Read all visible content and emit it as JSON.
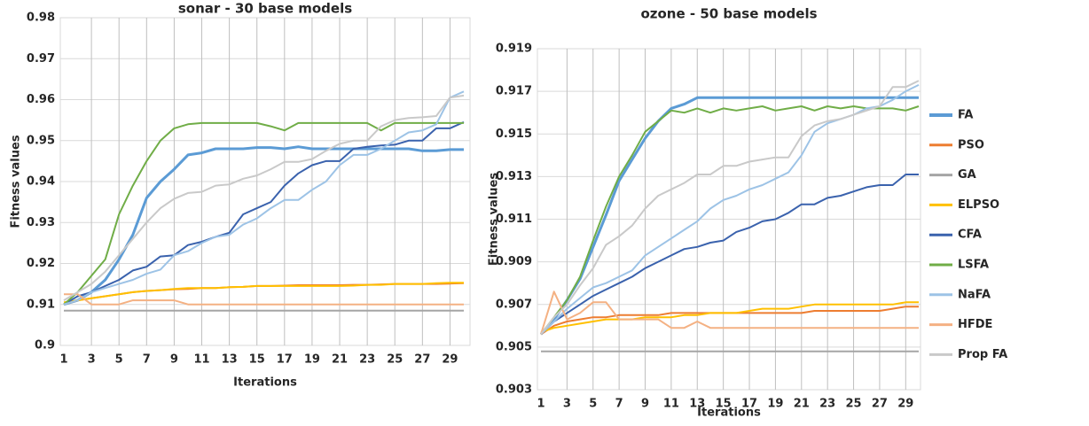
{
  "chart_data": [
    {
      "type": "line",
      "title": "sonar - 30 base models",
      "x_label": "Iterations",
      "y_label": "Fitness values",
      "categories": [
        1,
        null,
        3,
        null,
        5,
        null,
        7,
        null,
        9,
        null,
        11,
        null,
        13,
        null,
        15,
        null,
        17,
        null,
        19,
        null,
        21,
        null,
        23,
        null,
        25,
        null,
        27,
        null,
        29,
        null
      ],
      "ylim": [
        0.9,
        0.98
      ],
      "yticks": [
        0.9,
        0.91,
        0.92,
        0.93,
        0.94,
        0.95,
        0.96,
        0.97,
        0.98
      ],
      "grid": true,
      "series": [
        {
          "name": "FA",
          "color": "#5b9bd5",
          "width": 3,
          "values": [
            0.91,
            0.911,
            0.913,
            0.916,
            0.921,
            0.927,
            0.936,
            0.94,
            0.943,
            0.9465,
            0.947,
            0.948,
            0.948,
            0.948,
            0.9483,
            0.9483,
            0.948,
            0.9485,
            0.948,
            0.948,
            0.948,
            0.948,
            0.948,
            0.948,
            0.948,
            0.948,
            0.9475,
            0.9475,
            0.9478,
            0.9478
          ]
        },
        {
          "name": "PSO",
          "color": "#ed7d31",
          "width": 2,
          "values": [
            0.91,
            0.911,
            0.9115,
            0.912,
            0.9125,
            0.913,
            0.9133,
            0.9135,
            0.9137,
            0.9138,
            0.914,
            0.914,
            0.9142,
            0.9143,
            0.9145,
            0.9145,
            0.9146,
            0.9147,
            0.9147,
            0.9147,
            0.9147,
            0.9148,
            0.9148,
            0.9149,
            0.915,
            0.915,
            0.915,
            0.915,
            0.9151,
            0.9152
          ]
        },
        {
          "name": "GA",
          "color": "#a5a5a5",
          "width": 2,
          "values": [
            0.9085,
            0.9085,
            0.9085,
            0.9085,
            0.9085,
            0.9085,
            0.9085,
            0.9085,
            0.9085,
            0.9085,
            0.9085,
            0.9085,
            0.9085,
            0.9085,
            0.9085,
            0.9085,
            0.9085,
            0.9085,
            0.9085,
            0.9085,
            0.9085,
            0.9085,
            0.9085,
            0.9085,
            0.9085,
            0.9085,
            0.9085,
            0.9085,
            0.9085,
            0.9085
          ]
        },
        {
          "name": "ELPSO",
          "color": "#ffc000",
          "width": 2,
          "values": [
            0.9105,
            0.911,
            0.9115,
            0.912,
            0.9125,
            0.913,
            0.9133,
            0.9135,
            0.9138,
            0.914,
            0.914,
            0.914,
            0.9142,
            0.9143,
            0.9145,
            0.9145,
            0.9145,
            0.9145,
            0.9145,
            0.9145,
            0.9145,
            0.9146,
            0.9148,
            0.9148,
            0.915,
            0.915,
            0.915,
            0.9152,
            0.9153,
            0.9153
          ]
        },
        {
          "name": "CFA",
          "color": "#3a62ad",
          "width": 2,
          "values": [
            0.91,
            0.912,
            0.913,
            0.9145,
            0.916,
            0.9183,
            0.9192,
            0.9217,
            0.922,
            0.9245,
            0.9253,
            0.9265,
            0.9275,
            0.932,
            0.9335,
            0.935,
            0.939,
            0.942,
            0.944,
            0.945,
            0.945,
            0.948,
            0.9485,
            0.9488,
            0.949,
            0.95,
            0.95,
            0.953,
            0.953,
            0.9545
          ]
        },
        {
          "name": "LSFA",
          "color": "#70ad47",
          "width": 2,
          "values": [
            0.91,
            0.913,
            0.917,
            0.921,
            0.932,
            0.939,
            0.945,
            0.95,
            0.953,
            0.954,
            0.9543,
            0.9543,
            0.9543,
            0.9543,
            0.9543,
            0.9535,
            0.9525,
            0.9543,
            0.9543,
            0.9543,
            0.9543,
            0.9543,
            0.9543,
            0.9525,
            0.9543,
            0.9543,
            0.9543,
            0.9543,
            0.9543,
            0.9543
          ]
        },
        {
          "name": "NaFA",
          "color": "#9dc3e6",
          "width": 2,
          "values": [
            0.91,
            0.911,
            0.913,
            0.914,
            0.915,
            0.916,
            0.9175,
            0.9185,
            0.922,
            0.923,
            0.925,
            0.9265,
            0.927,
            0.9295,
            0.931,
            0.9335,
            0.9355,
            0.9355,
            0.938,
            0.94,
            0.944,
            0.9465,
            0.9465,
            0.948,
            0.95,
            0.952,
            0.9525,
            0.954,
            0.9605,
            0.962
          ]
        },
        {
          "name": "HFDE",
          "color": "#f4b183",
          "width": 2,
          "values": [
            0.9125,
            0.9125,
            0.91,
            0.91,
            0.91,
            0.911,
            0.911,
            0.911,
            0.911,
            0.91,
            0.91,
            0.91,
            0.91,
            0.91,
            0.91,
            0.91,
            0.91,
            0.91,
            0.91,
            0.91,
            0.91,
            0.91,
            0.91,
            0.91,
            0.91,
            0.91,
            0.91,
            0.91,
            0.91,
            0.91
          ]
        },
        {
          "name": "Prop FA",
          "color": "#c9c9c9",
          "width": 2,
          "values": [
            0.911,
            0.913,
            0.915,
            0.918,
            0.922,
            0.926,
            0.93,
            0.9335,
            0.9358,
            0.9372,
            0.9375,
            0.939,
            0.9393,
            0.9407,
            0.9415,
            0.943,
            0.9448,
            0.9448,
            0.9455,
            0.9475,
            0.9492,
            0.95,
            0.95,
            0.9535,
            0.955,
            0.9555,
            0.9557,
            0.956,
            0.9605,
            0.961
          ]
        }
      ]
    },
    {
      "type": "line",
      "title": "ozone - 50 base models",
      "x_label": "Iterations",
      "y_label": "Fitness values",
      "categories": [
        1,
        null,
        3,
        null,
        5,
        null,
        7,
        null,
        9,
        null,
        11,
        null,
        13,
        null,
        15,
        null,
        17,
        null,
        19,
        null,
        21,
        null,
        23,
        null,
        25,
        null,
        27,
        null,
        29,
        null
      ],
      "ylim": [
        0.903,
        0.919
      ],
      "yticks": [
        0.903,
        0.905,
        0.907,
        0.909,
        0.911,
        0.913,
        0.915,
        0.917,
        0.919
      ],
      "grid": true,
      "series": [
        {
          "color": "#5b9bd5",
          "width": 3,
          "values": [
            0.9056,
            0.9063,
            0.9072,
            0.9082,
            0.9097,
            0.9112,
            0.9128,
            0.9138,
            0.9148,
            0.9156,
            0.9162,
            0.9164,
            0.9167,
            0.9167,
            0.9167,
            0.9167,
            0.9167,
            0.9167,
            0.9167,
            0.9167,
            0.9167,
            0.9167,
            0.9167,
            0.9167,
            0.9167,
            0.9167,
            0.9167,
            0.9167,
            0.9167,
            0.9167
          ]
        },
        {
          "color": "#ed7d31",
          "width": 2,
          "values": [
            0.9056,
            0.906,
            0.9062,
            0.9063,
            0.9064,
            0.9064,
            0.9065,
            0.9065,
            0.9065,
            0.9065,
            0.9066,
            0.9066,
            0.9066,
            0.9066,
            0.9066,
            0.9066,
            0.9066,
            0.9066,
            0.9066,
            0.9066,
            0.9066,
            0.9067,
            0.9067,
            0.9067,
            0.9067,
            0.9067,
            0.9067,
            0.9068,
            0.9069,
            0.9069
          ]
        },
        {
          "color": "#a5a5a5",
          "width": 2,
          "values": [
            0.9048,
            0.9048,
            0.9048,
            0.9048,
            0.9048,
            0.9048,
            0.9048,
            0.9048,
            0.9048,
            0.9048,
            0.9048,
            0.9048,
            0.9048,
            0.9048,
            0.9048,
            0.9048,
            0.9048,
            0.9048,
            0.9048,
            0.9048,
            0.9048,
            0.9048,
            0.9048,
            0.9048,
            0.9048,
            0.9048,
            0.9048,
            0.9048,
            0.9048,
            0.9048
          ]
        },
        {
          "color": "#ffc000",
          "width": 2,
          "values": [
            0.9057,
            0.9059,
            0.906,
            0.9061,
            0.9062,
            0.9063,
            0.9063,
            0.9063,
            0.9064,
            0.9064,
            0.9064,
            0.9065,
            0.9065,
            0.9066,
            0.9066,
            0.9066,
            0.9067,
            0.9068,
            0.9068,
            0.9068,
            0.9069,
            0.907,
            0.907,
            0.907,
            0.907,
            0.907,
            0.907,
            0.907,
            0.9071,
            0.9071
          ]
        },
        {
          "color": "#3a62ad",
          "width": 2,
          "values": [
            0.9056,
            0.9062,
            0.9066,
            0.907,
            0.9074,
            0.9077,
            0.908,
            0.9083,
            0.9087,
            0.909,
            0.9093,
            0.9096,
            0.9097,
            0.9099,
            0.91,
            0.9104,
            0.9106,
            0.9109,
            0.911,
            0.9113,
            0.9117,
            0.9117,
            0.912,
            0.9121,
            0.9123,
            0.9125,
            0.9126,
            0.9126,
            0.9131,
            0.9131
          ]
        },
        {
          "color": "#70ad47",
          "width": 2,
          "values": [
            0.9056,
            0.9064,
            0.9072,
            0.9083,
            0.91,
            0.9116,
            0.913,
            0.914,
            0.9151,
            0.9156,
            0.9161,
            0.916,
            0.9162,
            0.916,
            0.9162,
            0.9161,
            0.9162,
            0.9163,
            0.9161,
            0.9162,
            0.9163,
            0.9161,
            0.9163,
            0.9162,
            0.9163,
            0.9162,
            0.9162,
            0.9162,
            0.9161,
            0.9163
          ]
        },
        {
          "color": "#9dc3e6",
          "width": 2,
          "values": [
            0.9056,
            0.9062,
            0.9068,
            0.9073,
            0.9078,
            0.908,
            0.9083,
            0.9086,
            0.9093,
            0.9097,
            0.9101,
            0.9105,
            0.9109,
            0.9115,
            0.9119,
            0.9121,
            0.9124,
            0.9126,
            0.9129,
            0.9132,
            0.914,
            0.9151,
            0.9155,
            0.9157,
            0.9159,
            0.9162,
            0.9163,
            0.9166,
            0.917,
            0.9173
          ]
        },
        {
          "color": "#f4b183",
          "width": 2,
          "values": [
            0.9056,
            0.9076,
            0.9063,
            0.9066,
            0.9071,
            0.9071,
            0.9063,
            0.9063,
            0.9063,
            0.9063,
            0.9059,
            0.9059,
            0.9062,
            0.9059,
            0.9059,
            0.9059,
            0.9059,
            0.9059,
            0.9059,
            0.9059,
            0.9059,
            0.9059,
            0.9059,
            0.9059,
            0.9059,
            0.9059,
            0.9059,
            0.9059,
            0.9059,
            0.9059
          ]
        },
        {
          "color": "#c9c9c9",
          "width": 2,
          "values": [
            0.9056,
            0.9064,
            0.907,
            0.9079,
            0.9087,
            0.9098,
            0.9102,
            0.9107,
            0.9115,
            0.9121,
            0.9124,
            0.9127,
            0.9131,
            0.9131,
            0.9135,
            0.9135,
            0.9137,
            0.9138,
            0.9139,
            0.9139,
            0.9149,
            0.9154,
            0.9156,
            0.9157,
            0.9159,
            0.9161,
            0.9163,
            0.9172,
            0.9172,
            0.9175
          ]
        }
      ]
    }
  ]
}
